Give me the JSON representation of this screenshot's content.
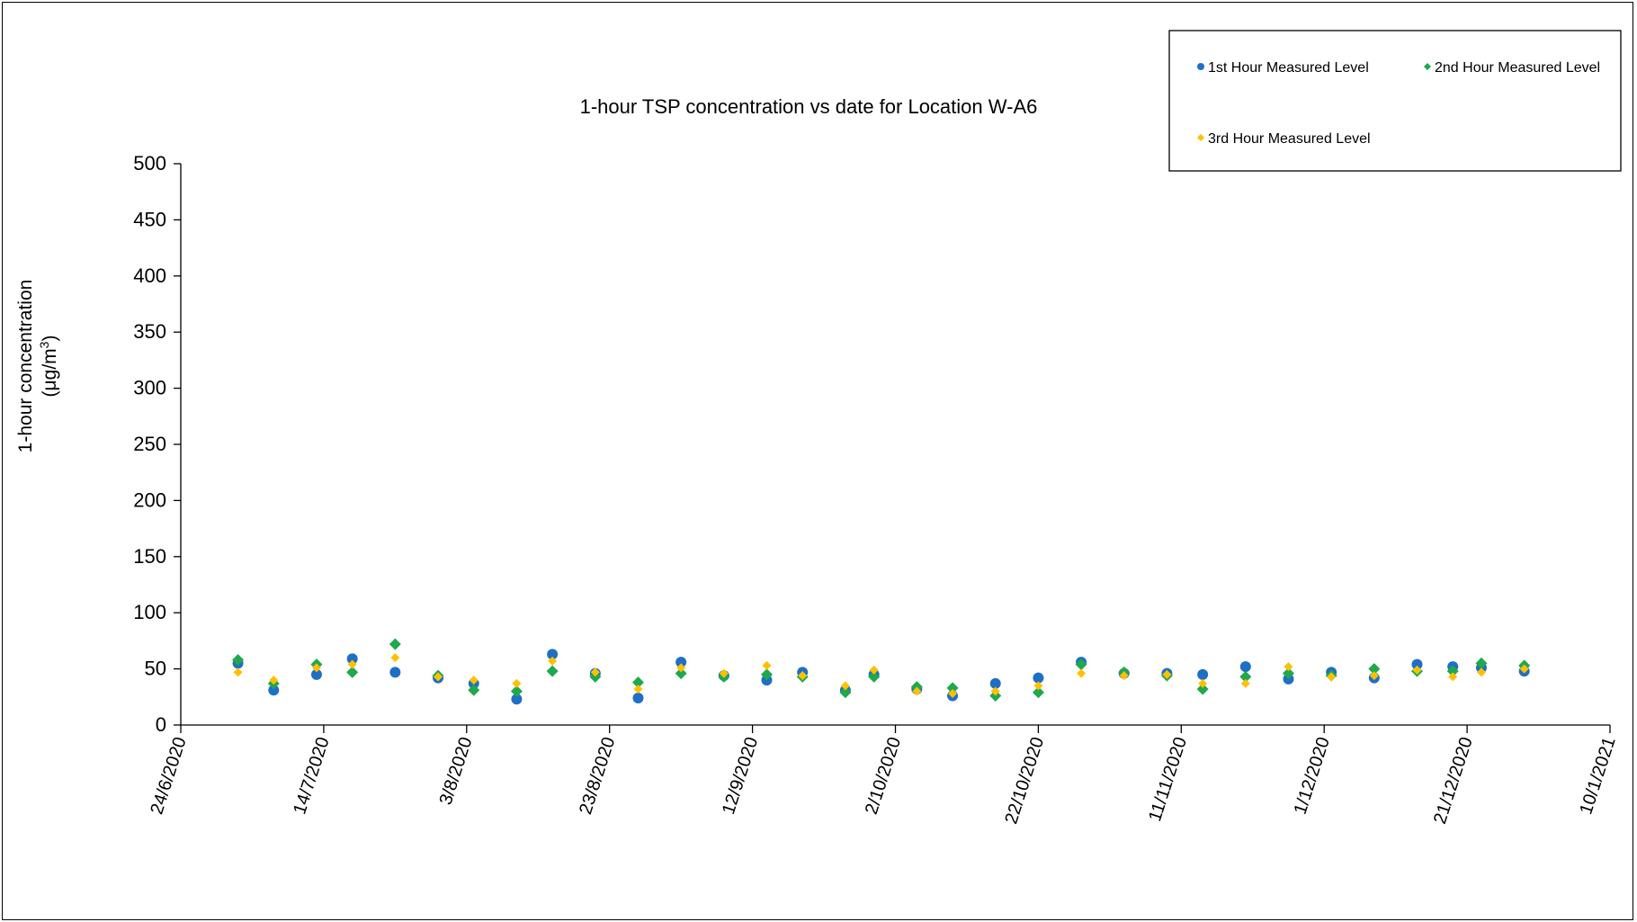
{
  "chart_data": {
    "type": "scatter",
    "title": "1-hour TSP concentration vs date for Location  W-A6",
    "ylabel_line1": "1-hour concentration",
    "ylabel_line2_prefix": "(μg/m",
    "ylabel_line2_sup": "3",
    "ylabel_line2_suffix": ")",
    "xlabel": "",
    "ylim": [
      0,
      500
    ],
    "y_ticks": [
      "0",
      "50",
      "100",
      "150",
      "200",
      "250",
      "300",
      "350",
      "400",
      "450",
      "500"
    ],
    "xlim": [
      "2020-06-24",
      "2021-01-10"
    ],
    "x_ticks": [
      {
        "date": "2020-06-24",
        "label": "24/6/2020"
      },
      {
        "date": "2020-07-14",
        "label": "14/7/2020"
      },
      {
        "date": "2020-08-03",
        "label": "3/8/2020"
      },
      {
        "date": "2020-08-23",
        "label": "23/8/2020"
      },
      {
        "date": "2020-09-12",
        "label": "12/9/2020"
      },
      {
        "date": "2020-10-02",
        "label": "2/10/2020"
      },
      {
        "date": "2020-10-22",
        "label": "22/10/2020"
      },
      {
        "date": "2020-11-11",
        "label": "11/11/2020"
      },
      {
        "date": "2020-12-01",
        "label": "1/12/2020"
      },
      {
        "date": "2020-12-21",
        "label": "21/12/2020"
      },
      {
        "date": "2021-01-10",
        "label": "10/1/2021"
      }
    ],
    "grid": false,
    "legend_position": "top-right",
    "x": [
      "2020-07-02",
      "2020-07-07",
      "2020-07-13",
      "2020-07-18",
      "2020-07-24",
      "2020-07-30",
      "2020-08-04",
      "2020-08-10",
      "2020-08-15",
      "2020-08-21",
      "2020-08-27",
      "2020-09-02",
      "2020-09-08",
      "2020-09-14",
      "2020-09-19",
      "2020-09-25",
      "2020-09-29",
      "2020-10-05",
      "2020-10-10",
      "2020-10-16",
      "2020-10-22",
      "2020-10-28",
      "2020-11-03",
      "2020-11-09",
      "2020-11-14",
      "2020-11-20",
      "2020-11-26",
      "2020-12-02",
      "2020-12-08",
      "2020-12-14",
      "2020-12-19",
      "2020-12-23",
      "2020-12-29"
    ],
    "series": [
      {
        "name": "1st Hour Measured Level",
        "color": "#1f6fc5",
        "marker": "circle",
        "values": [
          55,
          31,
          45,
          59,
          47,
          42,
          37,
          23,
          63,
          46,
          24,
          56,
          44,
          40,
          47,
          31,
          45,
          32,
          26,
          37,
          42,
          56,
          46,
          46,
          45,
          52,
          41,
          47,
          42,
          54,
          52,
          51,
          48
        ]
      },
      {
        "name": "2nd Hour Measured Level",
        "color": "#1fa84d",
        "marker": "diamond",
        "values": [
          58,
          37,
          54,
          47,
          72,
          44,
          31,
          30,
          48,
          43,
          38,
          46,
          43,
          45,
          43,
          29,
          43,
          34,
          33,
          26,
          29,
          54,
          47,
          44,
          32,
          43,
          46,
          44,
          50,
          48,
          48,
          55,
          53
        ]
      },
      {
        "name": "3rd Hour Measured Level",
        "color": "#ffc000",
        "marker": "diamond",
        "values": [
          47,
          40,
          51,
          54,
          60,
          43,
          40,
          37,
          57,
          47,
          32,
          51,
          46,
          53,
          44,
          35,
          49,
          30,
          28,
          30,
          35,
          46,
          44,
          45,
          37,
          37,
          52,
          43,
          44,
          49,
          43,
          47,
          50
        ]
      }
    ]
  }
}
